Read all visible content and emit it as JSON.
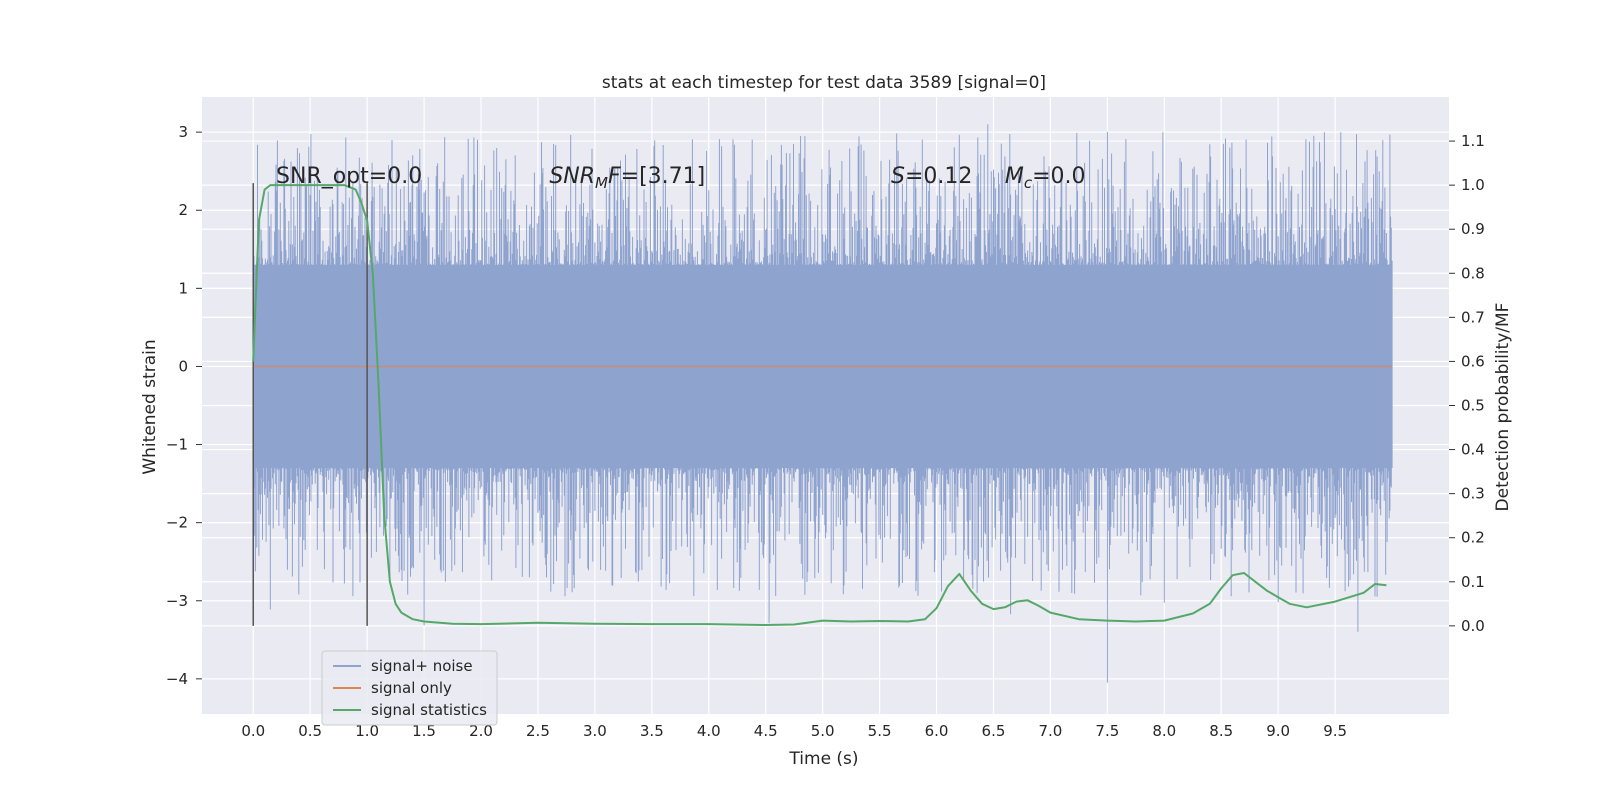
{
  "chart_data": {
    "type": "line",
    "title": "stats at each timestep for test data 3589 [signal=0]",
    "xlabel": "Time (s)",
    "ylabel": "Whitened strain",
    "y2label": "Detection probability/MF",
    "xlim": [
      -0.45,
      10.5
    ],
    "ylim": [
      -4.45,
      3.45
    ],
    "y2lim": [
      -0.2,
      1.2
    ],
    "xticks": [
      0.0,
      0.5,
      1.0,
      1.5,
      2.0,
      2.5,
      3.0,
      3.5,
      4.0,
      4.5,
      5.0,
      5.5,
      6.0,
      6.5,
      7.0,
      7.5,
      8.0,
      8.5,
      9.0,
      9.5
    ],
    "yticks": [
      3,
      2,
      1,
      0,
      -1,
      -2,
      -3,
      -4
    ],
    "y2ticks": [
      1.1,
      1.0,
      0.9,
      0.8,
      0.7,
      0.6,
      0.5,
      0.4,
      0.3,
      0.2,
      0.1,
      0.0
    ],
    "grid": true,
    "legend_position": "lower-left",
    "colors": {
      "noise": "#8fa3cf",
      "signal": "#dd8452",
      "stats": "#55a868",
      "background": "#eaeaf2",
      "grid": "#ffffff",
      "markers": "#555555"
    },
    "series": [
      {
        "name": "signal+ noise",
        "type": "noise-band",
        "x_range": [
          0.0,
          10.0
        ],
        "band": [
          -1.3,
          1.3
        ],
        "extremes": {
          "min": -4.05,
          "max": 3.1
        }
      },
      {
        "name": "signal only",
        "x": [
          0.0,
          10.0
        ],
        "y": [
          0.0,
          0.0
        ]
      },
      {
        "name": "signal statistics",
        "axis": "right",
        "x": [
          0.0,
          0.05,
          0.1,
          0.15,
          0.2,
          0.3,
          0.4,
          0.5,
          0.6,
          0.7,
          0.8,
          0.9,
          0.95,
          1.0,
          1.05,
          1.1,
          1.15,
          1.2,
          1.25,
          1.3,
          1.4,
          1.5,
          1.75,
          2.0,
          2.5,
          3.0,
          3.5,
          4.0,
          4.5,
          4.75,
          5.0,
          5.25,
          5.5,
          5.75,
          5.9,
          6.0,
          6.1,
          6.2,
          6.3,
          6.4,
          6.5,
          6.6,
          6.7,
          6.8,
          6.9,
          7.0,
          7.25,
          7.5,
          7.75,
          8.0,
          8.25,
          8.4,
          8.5,
          8.6,
          8.7,
          8.8,
          8.9,
          9.0,
          9.1,
          9.25,
          9.5,
          9.75,
          9.85,
          9.95
        ],
        "y": [
          0.6,
          0.92,
          0.99,
          1.0,
          1.0,
          1.0,
          1.0,
          1.0,
          1.0,
          1.0,
          1.0,
          0.99,
          0.96,
          0.92,
          0.8,
          0.55,
          0.25,
          0.1,
          0.05,
          0.03,
          0.015,
          0.01,
          0.005,
          0.004,
          0.007,
          0.005,
          0.004,
          0.004,
          0.002,
          0.003,
          0.012,
          0.01,
          0.011,
          0.01,
          0.015,
          0.04,
          0.09,
          0.118,
          0.08,
          0.05,
          0.038,
          0.042,
          0.055,
          0.058,
          0.045,
          0.03,
          0.015,
          0.012,
          0.01,
          0.012,
          0.028,
          0.05,
          0.085,
          0.115,
          0.12,
          0.1,
          0.08,
          0.065,
          0.05,
          0.042,
          0.055,
          0.075,
          0.095,
          0.092
        ]
      }
    ],
    "vlines": [
      {
        "x": 0.0,
        "y2_range": [
          0.0,
          1.0
        ]
      },
      {
        "x": 1.0,
        "y2_range": [
          0.0,
          1.0
        ]
      }
    ],
    "annotations": [
      {
        "id": "snr-opt",
        "text": "SNR_opt=0.0",
        "x": 0.2,
        "y2": 1.0
      },
      {
        "id": "snr-mf",
        "base": "SNR",
        "sub": "M",
        "rest": "F=[3.71]",
        "x": 2.6,
        "y2": 1.0
      },
      {
        "id": "s-value",
        "base": "S",
        "rest": "=0.12",
        "x": 5.6,
        "y2": 1.0
      },
      {
        "id": "mc-value",
        "base": "M",
        "sub": "c",
        "rest": "=0.0",
        "x": 6.6,
        "y2": 1.0
      }
    ],
    "legend": [
      {
        "label": "signal+ noise",
        "color_key": "noise"
      },
      {
        "label": "signal only",
        "color_key": "signal"
      },
      {
        "label": "signal statistics",
        "color_key": "stats"
      }
    ]
  }
}
